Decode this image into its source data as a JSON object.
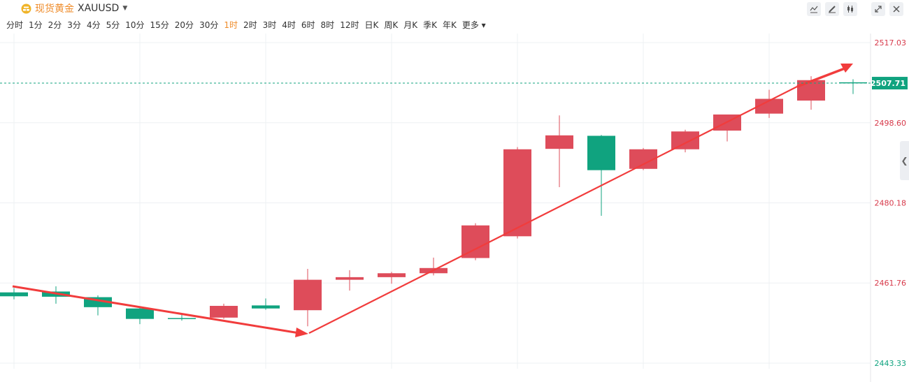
{
  "header": {
    "name": "现货黄金",
    "code": "XAUUSD",
    "tools": [
      "draw-line-icon",
      "pencil-icon",
      "candle-style-icon",
      "fullscreen-icon",
      "close-icon"
    ]
  },
  "intervals": [
    "分时",
    "1分",
    "2分",
    "3分",
    "4分",
    "5分",
    "10分",
    "15分",
    "20分",
    "30分",
    "1时",
    "2时",
    "3时",
    "4时",
    "6时",
    "8时",
    "12时",
    "日K",
    "周K",
    "月K",
    "季K",
    "年K",
    "更多"
  ],
  "active_interval": "1时",
  "colors": {
    "up": "#de4c5a",
    "down": "#10a37f",
    "arrow": "#f13c3c",
    "grid": "#eef0f3",
    "axis_text_up": "#d7394a",
    "axis_text_down": "#10a37f"
  },
  "chart_data": {
    "type": "candlestick",
    "ylim": [
      2443.33,
      2517.03
    ],
    "y_ticks": [
      {
        "value": 2517.03,
        "label": "2517.03"
      },
      {
        "value": 2498.6,
        "label": "2498.60"
      },
      {
        "value": 2480.18,
        "label": "2480.18"
      },
      {
        "value": 2461.76,
        "label": "2461.76"
      },
      {
        "value": 2443.33,
        "label": "2443.33"
      }
    ],
    "last_price": {
      "value": 2507.71,
      "label": "2507.71"
    },
    "candles": [
      {
        "o": 2459.6,
        "h": 2460.6,
        "l": 2458.0,
        "c": 2458.7
      },
      {
        "o": 2459.8,
        "h": 2461.0,
        "l": 2457.0,
        "c": 2458.6
      },
      {
        "o": 2458.5,
        "h": 2458.9,
        "l": 2454.3,
        "c": 2456.2
      },
      {
        "o": 2455.9,
        "h": 2456.4,
        "l": 2452.3,
        "c": 2453.5
      },
      {
        "o": 2453.7,
        "h": 2454.5,
        "l": 2453.1,
        "c": 2453.6
      },
      {
        "o": 2453.8,
        "h": 2457.0,
        "l": 2453.5,
        "c": 2456.5
      },
      {
        "o": 2456.6,
        "h": 2458.2,
        "l": 2455.6,
        "c": 2455.9
      },
      {
        "o": 2455.5,
        "h": 2465.0,
        "l": 2451.8,
        "c": 2462.5
      },
      {
        "o": 2462.5,
        "h": 2464.7,
        "l": 2460.0,
        "c": 2463.1
      },
      {
        "o": 2463.1,
        "h": 2464.3,
        "l": 2461.6,
        "c": 2464.0
      },
      {
        "o": 2464.0,
        "h": 2467.6,
        "l": 2463.5,
        "c": 2465.2
      },
      {
        "o": 2467.5,
        "h": 2475.5,
        "l": 2467.0,
        "c": 2475.0
      },
      {
        "o": 2472.5,
        "h": 2493.0,
        "l": 2472.0,
        "c": 2492.5
      },
      {
        "o": 2492.6,
        "h": 2500.3,
        "l": 2483.8,
        "c": 2495.7
      },
      {
        "o": 2495.6,
        "h": 2495.8,
        "l": 2477.2,
        "c": 2487.7
      },
      {
        "o": 2488.0,
        "h": 2492.8,
        "l": 2487.7,
        "c": 2492.5
      },
      {
        "o": 2492.5,
        "h": 2497.0,
        "l": 2491.8,
        "c": 2496.6
      },
      {
        "o": 2496.8,
        "h": 2500.5,
        "l": 2494.3,
        "c": 2500.5
      },
      {
        "o": 2500.7,
        "h": 2506.2,
        "l": 2499.7,
        "c": 2504.1
      },
      {
        "o": 2503.7,
        "h": 2509.3,
        "l": 2501.6,
        "c": 2508.4
      },
      {
        "o": 2507.9,
        "h": 2508.6,
        "l": 2505.2,
        "c": 2507.71
      }
    ]
  }
}
